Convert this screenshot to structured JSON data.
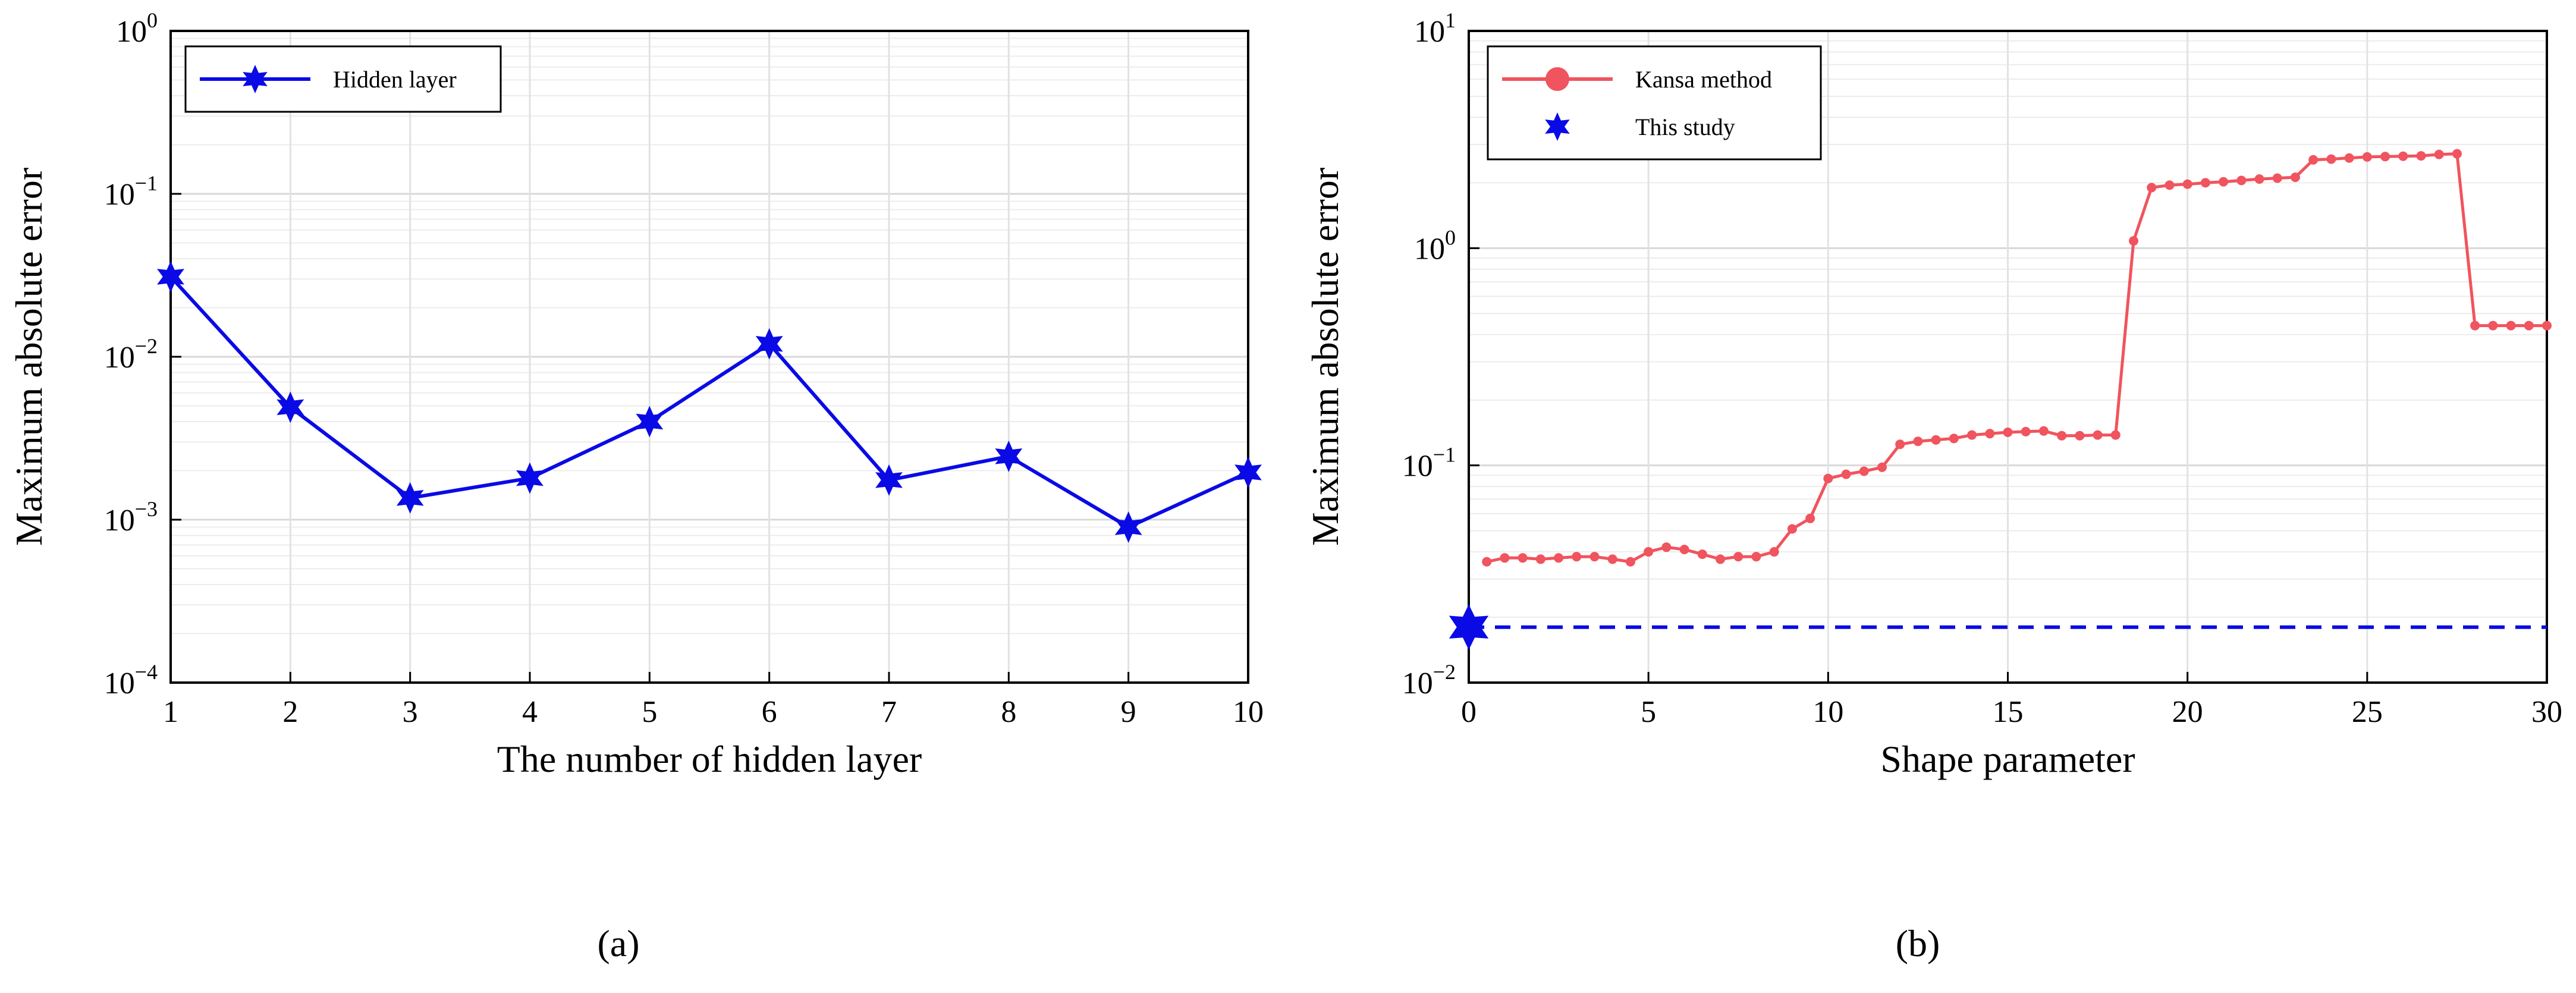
{
  "chart_data": [
    {
      "type": "line",
      "yscale": "log",
      "xlabel": "The number of hidden layer",
      "ylabel": "Maximum absolute error",
      "xlim": [
        1,
        10
      ],
      "ylim": [
        0.0001,
        1
      ],
      "xticks": [
        1,
        2,
        3,
        4,
        5,
        6,
        7,
        8,
        9,
        10
      ],
      "yticks": [
        {
          "value": 0.0001,
          "base": "10",
          "exp": "−4"
        },
        {
          "value": 0.001,
          "base": "10",
          "exp": "−3"
        },
        {
          "value": 0.01,
          "base": "10",
          "exp": "−2"
        },
        {
          "value": 0.1,
          "base": "10",
          "exp": "−1"
        },
        {
          "value": 1,
          "base": "10",
          "exp": "0"
        }
      ],
      "grid": true,
      "legend_position": "top-left",
      "series": [
        {
          "name": "Hidden layer",
          "color": "#0a0ae6",
          "marker": "star",
          "x": [
            1,
            2,
            3,
            4,
            5,
            6,
            7,
            8,
            9,
            10
          ],
          "values": [
            0.031,
            0.0049,
            0.00136,
            0.0018,
            0.004,
            0.012,
            0.00175,
            0.00245,
            0.0009,
            0.00195
          ]
        }
      ],
      "caption": "(a)"
    },
    {
      "type": "line",
      "yscale": "log",
      "xlabel": "Shape parameter",
      "ylabel": "Maximum absolute error",
      "xlim": [
        0,
        30
      ],
      "ylim": [
        0.01,
        10
      ],
      "xticks": [
        0,
        5,
        10,
        15,
        20,
        25,
        30
      ],
      "yticks": [
        {
          "value": 0.01,
          "base": "10",
          "exp": "−2"
        },
        {
          "value": 0.1,
          "base": "10",
          "exp": "−1"
        },
        {
          "value": 1,
          "base": "10",
          "exp": "0"
        },
        {
          "value": 10,
          "base": "10",
          "exp": "1"
        }
      ],
      "grid": true,
      "legend_position": "top-left",
      "series": [
        {
          "name": "Kansa method",
          "color": "#f0545e",
          "marker": "circle",
          "x": [
            0.5,
            1,
            1.5,
            2,
            2.5,
            3,
            3.5,
            4,
            4.5,
            5,
            5.5,
            6,
            6.5,
            7,
            7.5,
            8,
            8.5,
            9,
            9.5,
            10,
            10.5,
            11,
            11.5,
            12,
            12.5,
            13,
            13.5,
            14,
            14.5,
            15,
            15.5,
            16,
            16.5,
            17,
            17.5,
            18,
            18.5,
            19,
            19.5,
            20,
            20.5,
            21,
            21.5,
            22,
            22.5,
            23,
            23.5,
            24,
            24.5,
            25,
            25.5,
            26,
            26.5,
            27,
            27.5,
            28,
            28.5,
            29,
            29.5,
            30
          ],
          "values": [
            0.036,
            0.0375,
            0.0375,
            0.037,
            0.0375,
            0.038,
            0.038,
            0.037,
            0.036,
            0.04,
            0.042,
            0.041,
            0.039,
            0.037,
            0.038,
            0.038,
            0.04,
            0.051,
            0.057,
            0.087,
            0.091,
            0.094,
            0.098,
            0.125,
            0.129,
            0.131,
            0.133,
            0.138,
            0.14,
            0.142,
            0.143,
            0.144,
            0.137,
            0.137,
            0.138,
            0.138,
            1.08,
            1.9,
            1.95,
            1.97,
            2.0,
            2.02,
            2.05,
            2.08,
            2.1,
            2.12,
            2.55,
            2.57,
            2.6,
            2.63,
            2.64,
            2.65,
            2.66,
            2.7,
            2.72,
            0.44,
            0.44,
            0.44,
            0.44,
            0.44
          ]
        },
        {
          "name": "This study",
          "color": "#0a0ae6",
          "marker": "star",
          "line_style": "dashed",
          "x": [
            0
          ],
          "values": [
            0.018
          ]
        }
      ],
      "caption": "(b)"
    }
  ]
}
